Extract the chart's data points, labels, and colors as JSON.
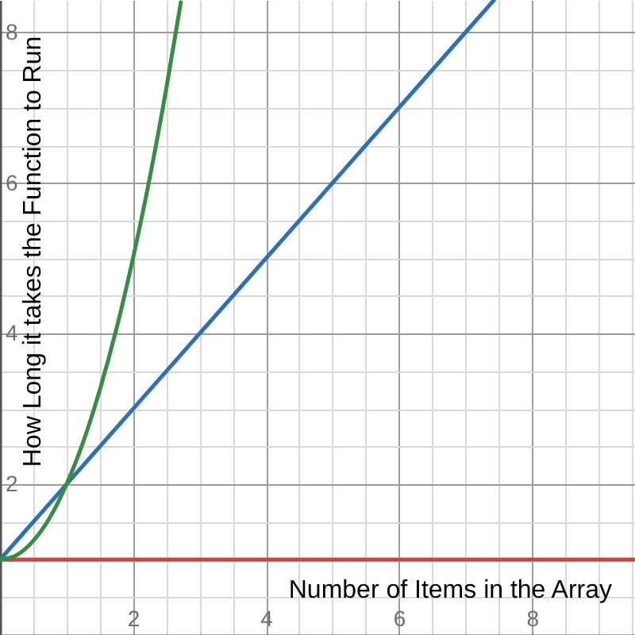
{
  "chart_data": {
    "type": "line",
    "xlabel": "Number of Items in the Array",
    "ylabel": "How Long it takes the Function to Run",
    "series": [
      {
        "color": "#c74440",
        "x": [
          0,
          9.55
        ],
        "values": [
          1,
          1
        ]
      },
      {
        "color": "#2d70b3",
        "x": [
          0,
          7.43
        ],
        "values": [
          1,
          8.43
        ]
      },
      {
        "color": "#388c46",
        "x": [
          0,
          0.25,
          0.5,
          0.75,
          1,
          1.25,
          1.5,
          1.75,
          2,
          2.25,
          2.5,
          2.72
        ],
        "values": [
          1,
          1.06,
          1.25,
          1.56,
          2,
          2.56,
          3.25,
          4.06,
          5,
          6.06,
          7.25,
          8.4
        ]
      }
    ],
    "xlim": [
      0,
      9.55
    ],
    "ylim": [
      0,
      8.43
    ],
    "xticks": [
      {
        "value": 0,
        "label": null
      },
      {
        "value": 0.5,
        "label": null
      },
      {
        "value": 1,
        "label": null
      },
      {
        "value": 1.5,
        "label": null
      },
      2,
      {
        "value": 2.5,
        "label": null
      },
      {
        "value": 3,
        "label": null
      },
      {
        "value": 3.5,
        "label": null
      },
      4,
      {
        "value": 4.5,
        "label": null
      },
      {
        "value": 5,
        "label": null
      },
      {
        "value": 5.5,
        "label": null
      },
      6,
      {
        "value": 6.5,
        "label": null
      },
      {
        "value": 7,
        "label": null
      },
      {
        "value": 7.5,
        "label": null
      },
      8,
      {
        "value": 8.5,
        "label": null
      },
      {
        "value": 9,
        "label": null
      },
      {
        "value": 9.5,
        "label": null
      }
    ],
    "yticks": [
      {
        "value": 0,
        "label": null
      },
      {
        "value": 0.5,
        "label": null
      },
      {
        "value": 1,
        "label": null
      },
      {
        "value": 1.5,
        "label": null
      },
      2,
      {
        "value": 2.5,
        "label": null
      },
      {
        "value": 3,
        "label": null
      },
      {
        "value": 3.5,
        "label": null
      },
      4,
      {
        "value": 4.5,
        "label": null
      },
      {
        "value": 5,
        "label": null
      },
      {
        "value": 5.5,
        "label": null
      },
      6,
      {
        "value": 6.5,
        "label": null
      },
      {
        "value": 7,
        "label": null
      },
      {
        "value": 7.5,
        "label": null
      },
      8
    ],
    "grid": true
  }
}
